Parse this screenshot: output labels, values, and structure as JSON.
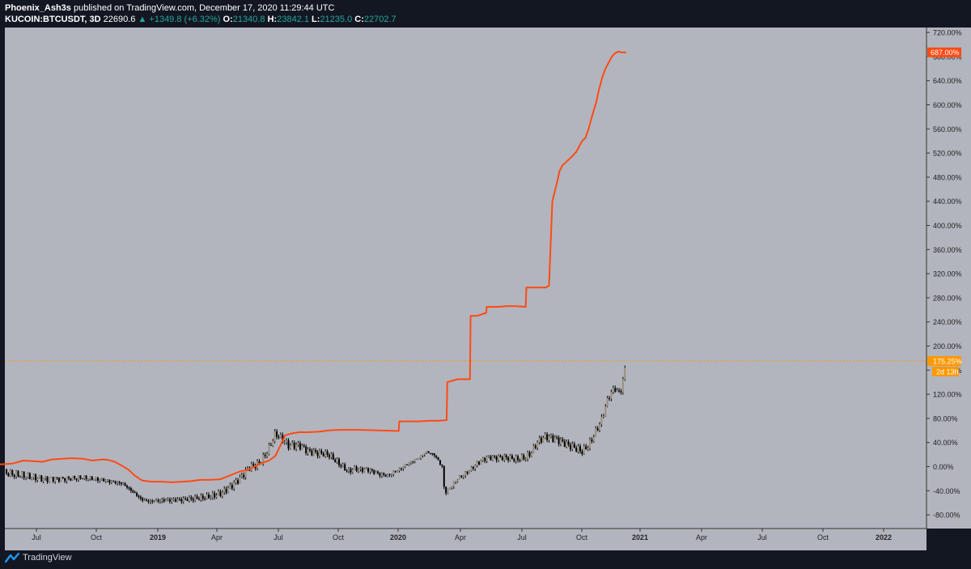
{
  "header": {
    "author": "Phoenix_Ash3s",
    "published": "published on TradingView.com, December 17, 2020 11:29:44 UTC",
    "symbol": "KUCOIN:BTCUSDT, 3D",
    "last": "22690.6",
    "change": "+1349.8 (+6.32%)",
    "o_label": "O:",
    "o_value": "21340.8",
    "h_label": "H:",
    "h_value": "23842.1",
    "l_label": "L:",
    "l_value": "21235.0",
    "c_label": "C:",
    "c_value": "22702.7"
  },
  "footer": {
    "brand": "TradingView"
  },
  "colors": {
    "background": "#b2b5be",
    "red_line": "#ff4a12",
    "candle": "#000000",
    "last_price": "#ff9800"
  },
  "chart_data": {
    "type": "line",
    "y_axis": {
      "unit": "%",
      "range": [
        -100,
        730
      ],
      "ticks": [
        "720.00%",
        "680.00%",
        "640.00%",
        "600.00%",
        "560.00%",
        "520.00%",
        "480.00%",
        "440.00%",
        "400.00%",
        "360.00%",
        "320.00%",
        "280.00%",
        "240.00%",
        "200.00%",
        "160.00%",
        "120.00%",
        "80.00%",
        "40.00%",
        "0.00%",
        "-40.00%",
        "-80.00%"
      ]
    },
    "x_axis": {
      "ticks": [
        "Jul",
        "Oct",
        "2019",
        "Apr",
        "Jul",
        "Oct",
        "2020",
        "Apr",
        "Jul",
        "Oct",
        "2021",
        "Apr",
        "Jul",
        "Oct",
        "2022"
      ],
      "bold": [
        "2019",
        "2020",
        "2021",
        "2022"
      ]
    },
    "series": [
      {
        "type": "line",
        "color": "#ff4a12",
        "x": [
          "2018-04-01",
          "2018-05-01",
          "2018-05-15",
          "2018-06-01",
          "2018-06-15",
          "2018-07-01",
          "2018-07-15",
          "2018-08-01",
          "2018-08-15",
          "2018-09-01",
          "2018-09-15",
          "2018-10-01",
          "2018-10-10",
          "2018-10-20",
          "2018-11-01",
          "2018-11-10",
          "2018-11-20",
          "2018-12-01",
          "2018-12-15",
          "2019-01-01",
          "2019-01-15",
          "2019-02-01",
          "2019-02-15",
          "2019-03-01",
          "2019-03-15",
          "2019-04-01",
          "2019-04-15",
          "2019-05-01",
          "2019-05-15",
          "2019-06-01",
          "2019-06-15",
          "2019-06-25",
          "2019-07-10",
          "2019-07-20",
          "2019-08-01",
          "2019-08-15",
          "2019-09-01",
          "2019-09-15",
          "2019-10-01",
          "2019-11-01",
          "2019-12-01",
          "2020-01-01",
          "2020-01-02",
          "2020-01-15",
          "2020-02-01",
          "2020-02-15",
          "2020-03-01",
          "2020-03-15",
          "2020-03-16",
          "2020-04-01",
          "2020-04-15",
          "2020-04-20",
          "2020-04-21",
          "2020-05-01",
          "2020-05-15",
          "2020-05-16",
          "2020-06-01",
          "2020-06-15",
          "2020-07-01",
          "2020-07-15",
          "2020-07-16",
          "2020-08-01",
          "2020-08-15",
          "2020-08-20",
          "2020-08-25",
          "2020-09-01",
          "2020-09-05",
          "2020-09-10",
          "2020-09-15",
          "2020-09-20",
          "2020-09-25",
          "2020-10-01",
          "2020-10-05",
          "2020-10-10",
          "2020-10-15",
          "2020-10-20",
          "2020-10-25",
          "2020-11-01",
          "2020-11-05",
          "2020-11-10",
          "2020-11-15",
          "2020-11-20",
          "2020-11-25",
          "2020-11-30",
          "2020-12-05",
          "2020-12-10",
          "2020-12-17"
        ],
        "y": [
          3,
          4,
          5,
          10,
          9,
          8,
          12,
          13,
          14,
          13,
          10,
          12,
          11,
          8,
          1,
          -5,
          -15,
          -23,
          -25,
          -25,
          -26,
          -25,
          -24,
          -22,
          -22,
          -21,
          -15,
          -8,
          -5,
          5,
          10,
          18,
          52,
          55,
          57,
          57,
          58,
          60,
          61,
          61,
          60,
          59,
          75,
          75,
          75,
          76,
          76,
          77,
          140,
          145,
          145,
          145,
          250,
          250,
          255,
          265,
          265,
          266,
          266,
          265,
          297,
          297,
          297,
          300,
          440,
          470,
          490,
          500,
          505,
          510,
          515,
          522,
          530,
          540,
          545,
          560,
          580,
          605,
          625,
          645,
          660,
          670,
          680,
          686,
          688,
          687,
          687
        ]
      },
      {
        "type": "candlestick",
        "color": "#000000",
        "last_value": "175.25%",
        "countdown": "2d 13h",
        "x": [
          "2018-04-01",
          "2018-05-01",
          "2018-06-01",
          "2018-07-01",
          "2018-08-01",
          "2018-09-01",
          "2018-10-01",
          "2018-10-15",
          "2018-11-01",
          "2018-11-15",
          "2018-12-01",
          "2018-12-15",
          "2019-01-01",
          "2019-02-01",
          "2019-03-01",
          "2019-03-15",
          "2019-04-01",
          "2019-04-15",
          "2019-05-01",
          "2019-05-15",
          "2019-06-01",
          "2019-06-15",
          "2019-06-25",
          "2019-07-05",
          "2019-07-15",
          "2019-08-01",
          "2019-08-15",
          "2019-09-01",
          "2019-09-15",
          "2019-10-01",
          "2019-10-15",
          "2019-10-26",
          "2019-11-01",
          "2019-11-15",
          "2019-12-01",
          "2019-12-15",
          "2020-01-01",
          "2020-01-15",
          "2020-02-01",
          "2020-02-12",
          "2020-02-25",
          "2020-03-08",
          "2020-03-12",
          "2020-03-20",
          "2020-04-01",
          "2020-04-15",
          "2020-05-01",
          "2020-05-15",
          "2020-06-01",
          "2020-06-15",
          "2020-07-01",
          "2020-07-15",
          "2020-07-25",
          "2020-08-01",
          "2020-08-15",
          "2020-09-01",
          "2020-09-10",
          "2020-09-20",
          "2020-10-01",
          "2020-10-10",
          "2020-10-20",
          "2020-10-25",
          "2020-11-01",
          "2020-11-10",
          "2020-11-15",
          "2020-11-20",
          "2020-11-25",
          "2020-12-01",
          "2020-12-05",
          "2020-12-10",
          "2020-12-14",
          "2020-12-17"
        ],
        "y": [
          -8,
          -10,
          -15,
          -20,
          -20,
          -18,
          -22,
          -25,
          -28,
          -40,
          -55,
          -58,
          -56,
          -55,
          -52,
          -50,
          -45,
          -35,
          -20,
          -2,
          5,
          30,
          55,
          45,
          35,
          35,
          25,
          22,
          20,
          5,
          -8,
          -3,
          -5,
          -5,
          -12,
          -15,
          -5,
          5,
          15,
          25,
          20,
          0,
          -45,
          -35,
          -20,
          -10,
          5,
          15,
          15,
          15,
          12,
          15,
          25,
          40,
          50,
          45,
          40,
          35,
          30,
          25,
          35,
          45,
          60,
          80,
          100,
          115,
          125,
          130,
          120,
          130,
          155,
          175
        ]
      }
    ]
  }
}
